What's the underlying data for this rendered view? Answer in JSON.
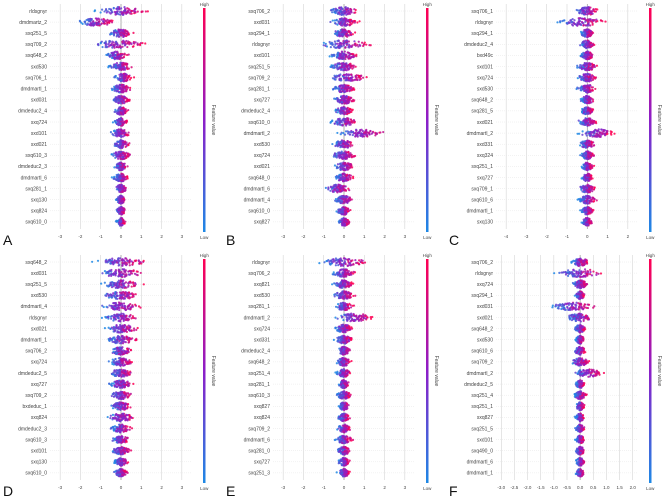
{
  "colors": {
    "low": "#1e88e5",
    "high": "#ff0052",
    "grid": "#cccccc",
    "text": "#444444"
  },
  "chart_data": [
    {
      "type": "scatter",
      "subtype": "shap-beeswarm",
      "panel_label": "A",
      "features": [
        "rldsgnyr",
        "dmdmartz_2",
        "sxq251_5",
        "sxq709_2",
        "sxq648_2",
        "sxd530",
        "sxq706_1",
        "dmdmartl_1",
        "sxd031",
        "dmdeduc2_4",
        "sxq724",
        "sxd101",
        "sxd021",
        "sxq610_3",
        "dmdeduc2_3",
        "dmdmartl_6",
        "sxq281_1",
        "sxq130",
        "sxq824",
        "sxq610_0"
      ],
      "center": [
        0.0,
        -1.2,
        0.0,
        -0.2,
        -0.2,
        0.0,
        0.1,
        0.0,
        0.0,
        0.0,
        0.0,
        0.0,
        0.0,
        0.0,
        0.0,
        0.0,
        0.0,
        0.0,
        0.0,
        0.0
      ],
      "spread": [
        2.0,
        1.6,
        1.0,
        2.4,
        0.9,
        1.0,
        0.8,
        0.9,
        0.8,
        0.6,
        0.6,
        0.9,
        0.7,
        0.9,
        0.6,
        0.7,
        0.5,
        0.4,
        0.4,
        0.4
      ],
      "x_ticks": [
        "-3",
        "-2",
        "-1",
        "0",
        "1",
        "2",
        "3"
      ],
      "xlim": [
        -3.5,
        3.5
      ],
      "colorbar": {
        "label": "Feature value",
        "high": "High",
        "low": "Low"
      }
    },
    {
      "type": "scatter",
      "subtype": "shap-beeswarm",
      "panel_label": "B",
      "features": [
        "sxq706_2",
        "sxd031",
        "sxq294_1",
        "rldsgnyr",
        "sxd101",
        "sxq251_5",
        "sxq709_2",
        "sxq281_1",
        "sxq727",
        "dmdeduc2_4",
        "sxq610_0",
        "dmdmartl_2",
        "sxd530",
        "sxq724",
        "sxd021",
        "sxq648_0",
        "dmdmartl_6",
        "dmdmartl_4",
        "sxq610_0",
        "sxq827"
      ],
      "center": [
        0.0,
        0.0,
        0.0,
        0.0,
        0.0,
        0.0,
        0.2,
        0.0,
        0.0,
        0.0,
        0.0,
        0.8,
        0.0,
        0.0,
        0.0,
        0.0,
        -0.3,
        0.0,
        0.0,
        0.0
      ],
      "spread": [
        1.2,
        1.2,
        1.0,
        2.3,
        1.2,
        1.2,
        1.6,
        0.9,
        0.9,
        0.8,
        1.2,
        2.0,
        1.0,
        1.0,
        0.9,
        0.8,
        1.2,
        0.8,
        0.6,
        0.5
      ],
      "x_ticks": [
        "-3",
        "-2",
        "-1",
        "0",
        "1",
        "2",
        "3"
      ],
      "xlim": [
        -3.5,
        3.5
      ],
      "colorbar": {
        "label": "Feature value",
        "high": "High",
        "low": "Low"
      }
    },
    {
      "type": "scatter",
      "subtype": "shap-beeswarm",
      "panel_label": "C",
      "features": [
        "sxq706_1",
        "rldsgnyr",
        "sxq294_1",
        "dmdeduc2_4",
        "bxd49c",
        "sxd101",
        "sxq724",
        "sxd530",
        "sxq648_2",
        "sxq281_5",
        "sxd021",
        "dmdmartl_2",
        "sxd331",
        "sxq324",
        "sxq251_1",
        "sxq727",
        "sxq709_1",
        "sxq610_6",
        "dmdmartl_1",
        "sxq130"
      ],
      "center": [
        0.0,
        -0.3,
        0.0,
        0.0,
        0.0,
        0.0,
        0.0,
        0.0,
        0.0,
        0.0,
        0.0,
        0.5,
        0.0,
        0.0,
        0.0,
        0.0,
        0.0,
        0.0,
        0.0,
        0.0
      ],
      "spread": [
        1.0,
        2.2,
        0.6,
        0.7,
        0.6,
        0.9,
        0.8,
        0.9,
        0.6,
        0.6,
        0.8,
        1.6,
        0.7,
        0.6,
        0.5,
        0.5,
        0.8,
        0.7,
        0.5,
        0.5
      ],
      "x_ticks": [
        "-4",
        "-3",
        "-2",
        "-1",
        "0",
        "1",
        "2"
      ],
      "xlim": [
        -4.5,
        2.5
      ],
      "colorbar": {
        "label": "Feature value",
        "high": "High",
        "low": "Low"
      }
    },
    {
      "type": "scatter",
      "subtype": "shap-beeswarm",
      "panel_label": "D",
      "features": [
        "sxq648_2",
        "sxd031",
        "sxq251_5",
        "sxd530",
        "dmdmartl_4",
        "rldsgnyr",
        "sxd021",
        "dmdmartl_1",
        "sxq706_2",
        "sxq724",
        "dmdeduc2_5",
        "sxq727",
        "sxq709_2",
        "bxdeduc_1",
        "sxq824",
        "dmdeduc2_3",
        "sxq610_3",
        "sxd101",
        "sxq130",
        "sxq610_0"
      ],
      "center": [
        0.0,
        0.0,
        0.0,
        0.0,
        0.0,
        0.0,
        0.0,
        0.0,
        0.0,
        0.0,
        0.0,
        0.0,
        0.0,
        0.0,
        0.0,
        0.0,
        0.0,
        0.0,
        0.0,
        0.0
      ],
      "spread": [
        2.2,
        2.0,
        1.8,
        1.6,
        1.8,
        1.5,
        1.5,
        1.3,
        1.0,
        1.1,
        1.0,
        1.0,
        0.9,
        0.9,
        1.2,
        0.9,
        0.8,
        0.8,
        0.6,
        0.6
      ],
      "x_ticks": [
        "-3",
        "-2",
        "-1",
        "0",
        "1",
        "2",
        "3"
      ],
      "xlim": [
        -3.5,
        3.5
      ],
      "colorbar": {
        "label": "Feature value",
        "high": "High",
        "low": "Low"
      }
    },
    {
      "type": "scatter",
      "subtype": "shap-beeswarm",
      "panel_label": "E",
      "features": [
        "rldsgnyr",
        "sxq706_2",
        "sxq821",
        "sxd530",
        "sxq281_1",
        "dmdmartl_2",
        "sxq724",
        "sxd331",
        "dmdeduc2_4",
        "sxq648_2",
        "sxq251_4",
        "sxq281_1",
        "sxq610_3",
        "sxq827",
        "sxq824",
        "sxq709_2",
        "dmdmartl_6",
        "sxq281_0",
        "sxq727",
        "sxq251_3"
      ],
      "center": [
        0.0,
        0.0,
        0.0,
        0.0,
        0.0,
        0.5,
        0.0,
        0.0,
        0.0,
        0.0,
        0.0,
        0.0,
        0.0,
        0.0,
        0.0,
        0.0,
        0.0,
        0.0,
        0.0,
        0.0
      ],
      "spread": [
        2.2,
        1.0,
        0.9,
        0.9,
        0.8,
        1.8,
        0.8,
        0.8,
        0.6,
        0.7,
        0.6,
        0.5,
        0.6,
        0.5,
        0.5,
        0.6,
        0.7,
        0.6,
        0.5,
        0.5
      ],
      "x_ticks": [
        "-3",
        "-2",
        "-1",
        "0",
        "1",
        "2",
        "3"
      ],
      "xlim": [
        -3.5,
        3.5
      ],
      "colorbar": {
        "label": "Feature value",
        "high": "High",
        "low": "Low"
      }
    },
    {
      "type": "scatter",
      "subtype": "shap-beeswarm",
      "panel_label": "F",
      "features": [
        "sxq706_2",
        "rldsgnyr",
        "sxq724",
        "sxq294_1",
        "sxd031",
        "sxd021",
        "sxq648_2",
        "sxd530",
        "sxq610_6",
        "sxq709_2",
        "dmdmartl_2",
        "dmdeduc2_5",
        "sxq251_4",
        "sxq251_1",
        "sxq827",
        "sxq251_5",
        "sxd101",
        "sxq490_0",
        "dmdmartl_6",
        "dmdmartl_1"
      ],
      "center": [
        0.0,
        0.0,
        0.0,
        0.0,
        -0.3,
        0.0,
        0.0,
        0.0,
        0.0,
        0.0,
        0.3,
        0.0,
        0.0,
        0.0,
        0.0,
        0.0,
        0.0,
        0.0,
        0.0,
        0.0
      ],
      "spread": [
        0.6,
        1.6,
        0.5,
        0.3,
        1.6,
        1.0,
        0.4,
        0.3,
        0.4,
        0.6,
        1.0,
        0.3,
        0.4,
        0.3,
        0.3,
        0.3,
        0.3,
        0.3,
        0.3,
        0.3
      ],
      "x_ticks": [
        "-3.0",
        "-2.5",
        "-2.0",
        "-1.5",
        "-1.0",
        "-0.5",
        "0.0",
        "0.5",
        "1.0",
        "1.5",
        "2.0"
      ],
      "xlim": [
        -3.2,
        2.2
      ],
      "colorbar": {
        "label": "Feature value",
        "high": "High",
        "low": "Low"
      }
    }
  ]
}
